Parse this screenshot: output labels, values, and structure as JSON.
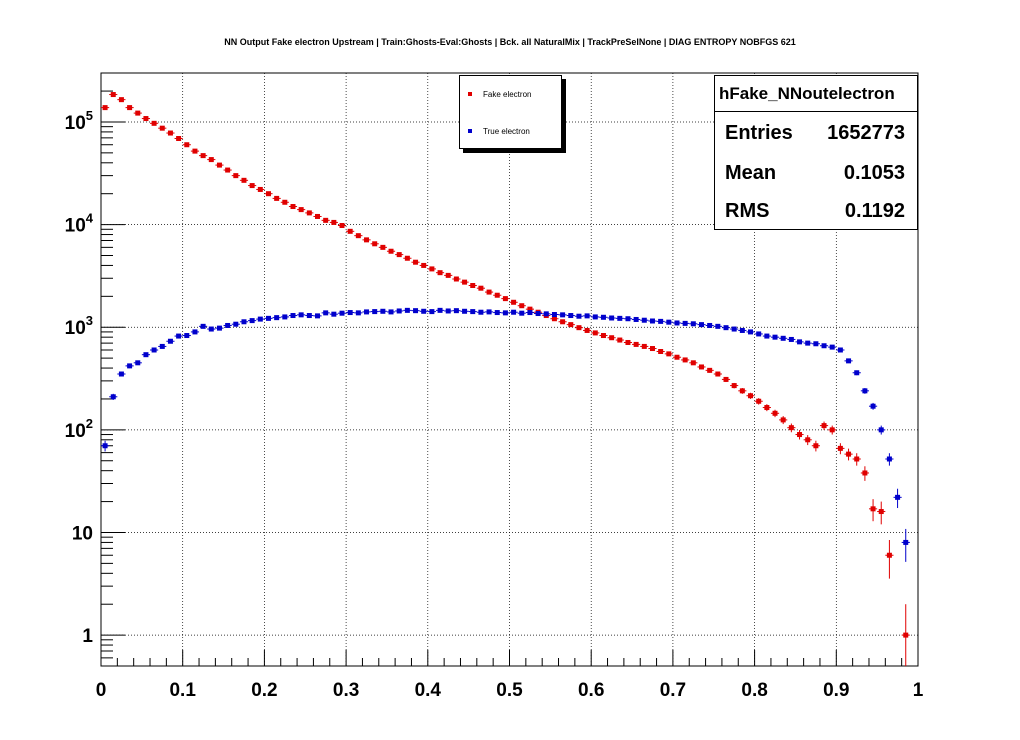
{
  "title": "NN Output Fake electron Upstream | Train:Ghosts-Eval:Ghosts | Bck. all NaturalMix | TrackPreSelNone | DIAG ENTROPY NOBFGS 621",
  "stats": {
    "name": "hFake_NNoutelectron",
    "rows": [
      {
        "label": "Entries",
        "value": "1652773"
      },
      {
        "label": "Mean",
        "value": "0.1053"
      },
      {
        "label": "RMS",
        "value": "0.1192"
      }
    ]
  },
  "legend": [
    {
      "label": "Fake electron",
      "color": "#e00000"
    },
    {
      "label": "True electron",
      "color": "#0000cc"
    }
  ],
  "chart_data": {
    "type": "scatter",
    "title": "NN Output Fake electron Upstream | Train:Ghosts-Eval:Ghosts | Bck. all NaturalMix | TrackPreSelNone | DIAG ENTROPY NOBFGS 621",
    "xlabel": "",
    "ylabel": "",
    "xlim": [
      0,
      1
    ],
    "ylim": [
      0.5,
      300000
    ],
    "yscale": "log",
    "grid": true,
    "legend_position": "top-center",
    "x_ticks": [
      "0",
      "0.1",
      "0.2",
      "0.3",
      "0.4",
      "0.5",
      "0.6",
      "0.7",
      "0.8",
      "0.9",
      "1"
    ],
    "y_ticks": [
      {
        "value": 1,
        "base": "1",
        "exp": ""
      },
      {
        "value": 10,
        "base": "10",
        "exp": ""
      },
      {
        "value": 100,
        "base": "10",
        "exp": "2"
      },
      {
        "value": 1000,
        "base": "10",
        "exp": "3"
      },
      {
        "value": 10000,
        "base": "10",
        "exp": "4"
      },
      {
        "value": 100000,
        "base": "10",
        "exp": "5"
      }
    ],
    "series": [
      {
        "name": "Fake electron",
        "color": "#e00000",
        "x": [
          0.005,
          0.015,
          0.025,
          0.035,
          0.045,
          0.055,
          0.065,
          0.075,
          0.085,
          0.095,
          0.105,
          0.115,
          0.125,
          0.135,
          0.145,
          0.155,
          0.165,
          0.175,
          0.185,
          0.195,
          0.205,
          0.215,
          0.225,
          0.235,
          0.245,
          0.255,
          0.265,
          0.275,
          0.285,
          0.295,
          0.305,
          0.315,
          0.325,
          0.335,
          0.345,
          0.355,
          0.365,
          0.375,
          0.385,
          0.395,
          0.405,
          0.415,
          0.425,
          0.435,
          0.445,
          0.455,
          0.465,
          0.475,
          0.485,
          0.495,
          0.505,
          0.515,
          0.525,
          0.535,
          0.545,
          0.555,
          0.565,
          0.575,
          0.585,
          0.595,
          0.605,
          0.615,
          0.625,
          0.635,
          0.645,
          0.655,
          0.665,
          0.675,
          0.685,
          0.695,
          0.705,
          0.715,
          0.725,
          0.735,
          0.745,
          0.755,
          0.765,
          0.775,
          0.785,
          0.795,
          0.805,
          0.815,
          0.825,
          0.835,
          0.845,
          0.855,
          0.865,
          0.875,
          0.885,
          0.895,
          0.905,
          0.915,
          0.925,
          0.935,
          0.945,
          0.955,
          0.965,
          0.975,
          0.985
        ],
        "y": [
          138000,
          185000,
          165000,
          138000,
          122000,
          108000,
          97000,
          87000,
          78000,
          69000,
          60000,
          52000,
          47000,
          43000,
          38000,
          34000,
          30000,
          27000,
          24000,
          22000,
          20000,
          18000,
          16500,
          15000,
          14000,
          13000,
          12000,
          11000,
          10500,
          9800,
          8600,
          7800,
          7100,
          6500,
          6000,
          5500,
          5100,
          4700,
          4300,
          4000,
          3700,
          3400,
          3200,
          2950,
          2750,
          2550,
          2400,
          2200,
          2050,
          1900,
          1750,
          1620,
          1500,
          1400,
          1300,
          1210,
          1130,
          1060,
          990,
          930,
          880,
          830,
          790,
          750,
          710,
          680,
          650,
          620,
          580,
          550,
          510,
          480,
          450,
          410,
          380,
          350,
          310,
          270,
          240,
          215,
          190,
          165,
          145,
          125,
          105,
          90,
          80,
          70,
          110,
          100,
          66,
          58,
          52,
          38,
          17,
          16,
          6,
          0,
          1
        ]
      },
      {
        "name": "True electron",
        "color": "#0000cc",
        "x": [
          0.005,
          0.015,
          0.025,
          0.035,
          0.045,
          0.055,
          0.065,
          0.075,
          0.085,
          0.095,
          0.105,
          0.115,
          0.125,
          0.135,
          0.145,
          0.155,
          0.165,
          0.175,
          0.185,
          0.195,
          0.205,
          0.215,
          0.225,
          0.235,
          0.245,
          0.255,
          0.265,
          0.275,
          0.285,
          0.295,
          0.305,
          0.315,
          0.325,
          0.335,
          0.345,
          0.355,
          0.365,
          0.375,
          0.385,
          0.395,
          0.405,
          0.415,
          0.425,
          0.435,
          0.445,
          0.455,
          0.465,
          0.475,
          0.485,
          0.495,
          0.505,
          0.515,
          0.525,
          0.535,
          0.545,
          0.555,
          0.565,
          0.575,
          0.585,
          0.595,
          0.605,
          0.615,
          0.625,
          0.635,
          0.645,
          0.655,
          0.665,
          0.675,
          0.685,
          0.695,
          0.705,
          0.715,
          0.725,
          0.735,
          0.745,
          0.755,
          0.765,
          0.775,
          0.785,
          0.795,
          0.805,
          0.815,
          0.825,
          0.835,
          0.845,
          0.855,
          0.865,
          0.875,
          0.885,
          0.895,
          0.905,
          0.915,
          0.925,
          0.935,
          0.945,
          0.955,
          0.965,
          0.975,
          0.985
        ],
        "y": [
          70,
          210,
          350,
          420,
          450,
          540,
          600,
          650,
          730,
          820,
          830,
          900,
          1020,
          960,
          980,
          1040,
          1070,
          1130,
          1160,
          1200,
          1220,
          1240,
          1260,
          1300,
          1320,
          1300,
          1290,
          1380,
          1340,
          1370,
          1390,
          1380,
          1410,
          1420,
          1430,
          1410,
          1440,
          1460,
          1450,
          1430,
          1420,
          1460,
          1440,
          1450,
          1430,
          1420,
          1400,
          1410,
          1390,
          1380,
          1400,
          1370,
          1390,
          1360,
          1350,
          1330,
          1320,
          1300,
          1280,
          1290,
          1260,
          1250,
          1230,
          1220,
          1210,
          1190,
          1170,
          1150,
          1140,
          1120,
          1100,
          1090,
          1080,
          1060,
          1040,
          1020,
          990,
          960,
          930,
          900,
          860,
          820,
          800,
          780,
          760,
          720,
          700,
          690,
          660,
          640,
          600,
          470,
          360,
          240,
          170,
          100,
          52,
          22,
          8
        ]
      }
    ]
  }
}
